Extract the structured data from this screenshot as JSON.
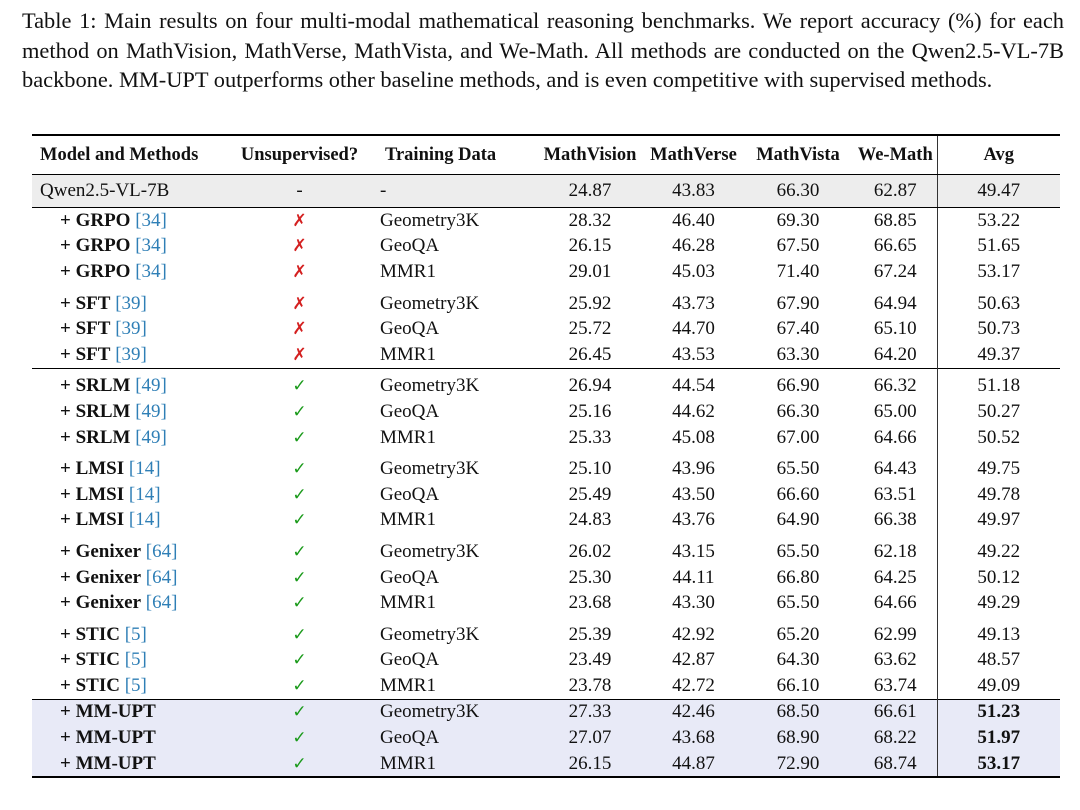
{
  "caption": "Table 1: Main results on four multi-modal mathematical reasoning benchmarks. We report accuracy (%) for each method on MathVision, MathVerse, MathVista, and We-Math. All methods are conducted on the Qwen2.5-VL-7B backbone. MM-UPT outperforms other baseline methods, and is even competitive with supervised methods.",
  "headers": [
    "Model and Methods",
    "Unsupervised?",
    "Training Data",
    "MathVision",
    "MathVerse",
    "MathVista",
    "We-Math",
    "Avg"
  ],
  "base": {
    "model": "Qwen2.5-VL-7B",
    "unsup": "-",
    "data": "-",
    "mathvision": "24.87",
    "mathverse": "43.83",
    "mathvista": "66.30",
    "wemath": "62.87",
    "avg": "49.47"
  },
  "rows": [
    {
      "name": "+ GRPO",
      "cite": "[34]",
      "unsup": "✗",
      "data": "Geometry3K",
      "mathvision": "28.32",
      "mathverse": "46.40",
      "mathvista": "69.30",
      "wemath": "68.85",
      "avg": "53.22"
    },
    {
      "name": "+ GRPO",
      "cite": "[34]",
      "unsup": "✗",
      "data": "GeoQA",
      "mathvision": "26.15",
      "mathverse": "46.28",
      "mathvista": "67.50",
      "wemath": "66.65",
      "avg": "51.65"
    },
    {
      "name": "+ GRPO",
      "cite": "[34]",
      "unsup": "✗",
      "data": "MMR1",
      "mathvision": "29.01",
      "mathverse": "45.03",
      "mathvista": "71.40",
      "wemath": "67.24",
      "avg": "53.17"
    },
    {
      "name": "+ SFT",
      "cite": "[39]",
      "unsup": "✗",
      "data": "Geometry3K",
      "mathvision": "25.92",
      "mathverse": "43.73",
      "mathvista": "67.90",
      "wemath": "64.94",
      "avg": "50.63"
    },
    {
      "name": "+ SFT",
      "cite": "[39]",
      "unsup": "✗",
      "data": "GeoQA",
      "mathvision": "25.72",
      "mathverse": "44.70",
      "mathvista": "67.40",
      "wemath": "65.10",
      "avg": "50.73"
    },
    {
      "name": "+ SFT",
      "cite": "[39]",
      "unsup": "✗",
      "data": "MMR1",
      "mathvision": "26.45",
      "mathverse": "43.53",
      "mathvista": "63.30",
      "wemath": "64.20",
      "avg": "49.37"
    },
    {
      "name": "+ SRLM",
      "cite": "[49]",
      "unsup": "✓",
      "data": "Geometry3K",
      "mathvision": "26.94",
      "mathverse": "44.54",
      "mathvista": "66.90",
      "wemath": "66.32",
      "avg": "51.18"
    },
    {
      "name": "+ SRLM",
      "cite": "[49]",
      "unsup": "✓",
      "data": "GeoQA",
      "mathvision": "25.16",
      "mathverse": "44.62",
      "mathvista": "66.30",
      "wemath": "65.00",
      "avg": "50.27"
    },
    {
      "name": "+ SRLM",
      "cite": "[49]",
      "unsup": "✓",
      "data": "MMR1",
      "mathvision": "25.33",
      "mathverse": "45.08",
      "mathvista": "67.00",
      "wemath": "64.66",
      "avg": "50.52"
    },
    {
      "name": "+ LMSI",
      "cite": "[14]",
      "unsup": "✓",
      "data": "Geometry3K",
      "mathvision": "25.10",
      "mathverse": "43.96",
      "mathvista": "65.50",
      "wemath": "64.43",
      "avg": "49.75"
    },
    {
      "name": "+ LMSI",
      "cite": "[14]",
      "unsup": "✓",
      "data": "GeoQA",
      "mathvision": "25.49",
      "mathverse": "43.50",
      "mathvista": "66.60",
      "wemath": "63.51",
      "avg": "49.78"
    },
    {
      "name": "+ LMSI",
      "cite": "[14]",
      "unsup": "✓",
      "data": "MMR1",
      "mathvision": "24.83",
      "mathverse": "43.76",
      "mathvista": "64.90",
      "wemath": "66.38",
      "avg": "49.97"
    },
    {
      "name": "+ Genixer",
      "cite": "[64]",
      "unsup": "✓",
      "data": "Geometry3K",
      "mathvision": "26.02",
      "mathverse": "43.15",
      "mathvista": "65.50",
      "wemath": "62.18",
      "avg": "49.22"
    },
    {
      "name": "+ Genixer",
      "cite": "[64]",
      "unsup": "✓",
      "data": "GeoQA",
      "mathvision": "25.30",
      "mathverse": "44.11",
      "mathvista": "66.80",
      "wemath": "64.25",
      "avg": "50.12"
    },
    {
      "name": "+ Genixer",
      "cite": "[64]",
      "unsup": "✓",
      "data": "MMR1",
      "mathvision": "23.68",
      "mathverse": "43.30",
      "mathvista": "65.50",
      "wemath": "64.66",
      "avg": "49.29"
    },
    {
      "name": "+ STIC",
      "cite": "[5]",
      "unsup": "✓",
      "data": "Geometry3K",
      "mathvision": "25.39",
      "mathverse": "42.92",
      "mathvista": "65.20",
      "wemath": "62.99",
      "avg": "49.13"
    },
    {
      "name": "+ STIC",
      "cite": "[5]",
      "unsup": "✓",
      "data": "GeoQA",
      "mathvision": "23.49",
      "mathverse": "42.87",
      "mathvista": "64.30",
      "wemath": "63.62",
      "avg": "48.57"
    },
    {
      "name": "+ STIC",
      "cite": "[5]",
      "unsup": "✓",
      "data": "MMR1",
      "mathvision": "23.78",
      "mathverse": "42.72",
      "mathvista": "66.10",
      "wemath": "63.74",
      "avg": "49.09"
    },
    {
      "name": "+ MM-UPT",
      "cite": "",
      "unsup": "✓",
      "data": "Geometry3K",
      "mathvision": "27.33",
      "mathverse": "42.46",
      "mathvista": "68.50",
      "wemath": "66.61",
      "avg": "51.23"
    },
    {
      "name": "+ MM-UPT",
      "cite": "",
      "unsup": "✓",
      "data": "GeoQA",
      "mathvision": "27.07",
      "mathverse": "43.68",
      "mathvista": "68.90",
      "wemath": "68.22",
      "avg": "51.97"
    },
    {
      "name": "+ MM-UPT",
      "cite": "",
      "unsup": "✓",
      "data": "MMR1",
      "mathvision": "26.15",
      "mathverse": "44.87",
      "mathvista": "72.90",
      "wemath": "68.74",
      "avg": "53.17"
    }
  ]
}
